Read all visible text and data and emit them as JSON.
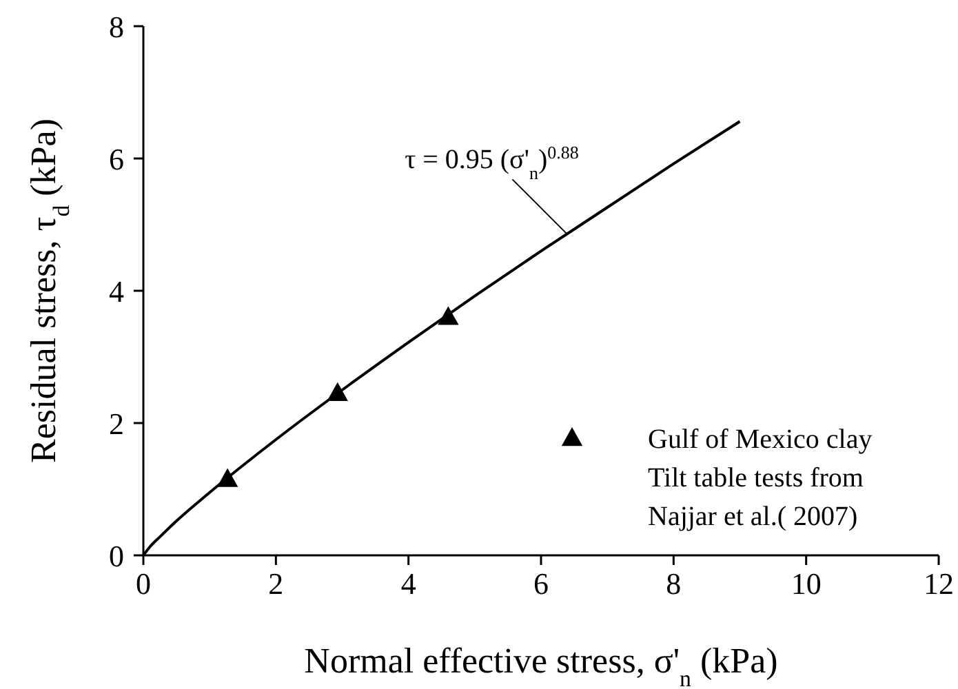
{
  "chart_data": {
    "type": "scatter",
    "xlabel": "Normal effective stress, σ'$_{n}$ (kPa)",
    "ylabel": "Residual stress, τ$_{d}$ (kPa)",
    "xlim": [
      0,
      12
    ],
    "ylim": [
      0,
      8
    ],
    "xticks": [
      0,
      2,
      4,
      6,
      8,
      10,
      12
    ],
    "yticks": [
      0,
      2,
      4,
      6,
      8
    ],
    "grid": false,
    "legend": "bottom right",
    "marker": "triangle",
    "series": [
      {
        "type": "line",
        "color": "#000000",
        "marker": "none",
        "line_style": "solid",
        "x": [
          0,
          0.1,
          0.25,
          0.5,
          1,
          2,
          3,
          4,
          5,
          6,
          7,
          8,
          9
        ],
        "values": [
          0,
          0.13,
          0.28,
          0.52,
          0.95,
          1.75,
          2.5,
          3.22,
          3.92,
          4.6,
          5.26,
          5.92,
          6.56
        ]
      },
      {
        "name": "Gulf of Mexico clay\nTilt table tests from\nNajjar et al.( 2007)",
        "color": "#000000",
        "x": [
          1.27,
          2.93,
          4.6
        ],
        "values": [
          1.15,
          2.45,
          3.6
        ]
      }
    ],
    "annotations": [
      {
        "text": "τ = 0.95 (σ'$_{n}$)$^{0.88}$",
        "x": 6.4,
        "y": 4.85
      }
    ]
  }
}
